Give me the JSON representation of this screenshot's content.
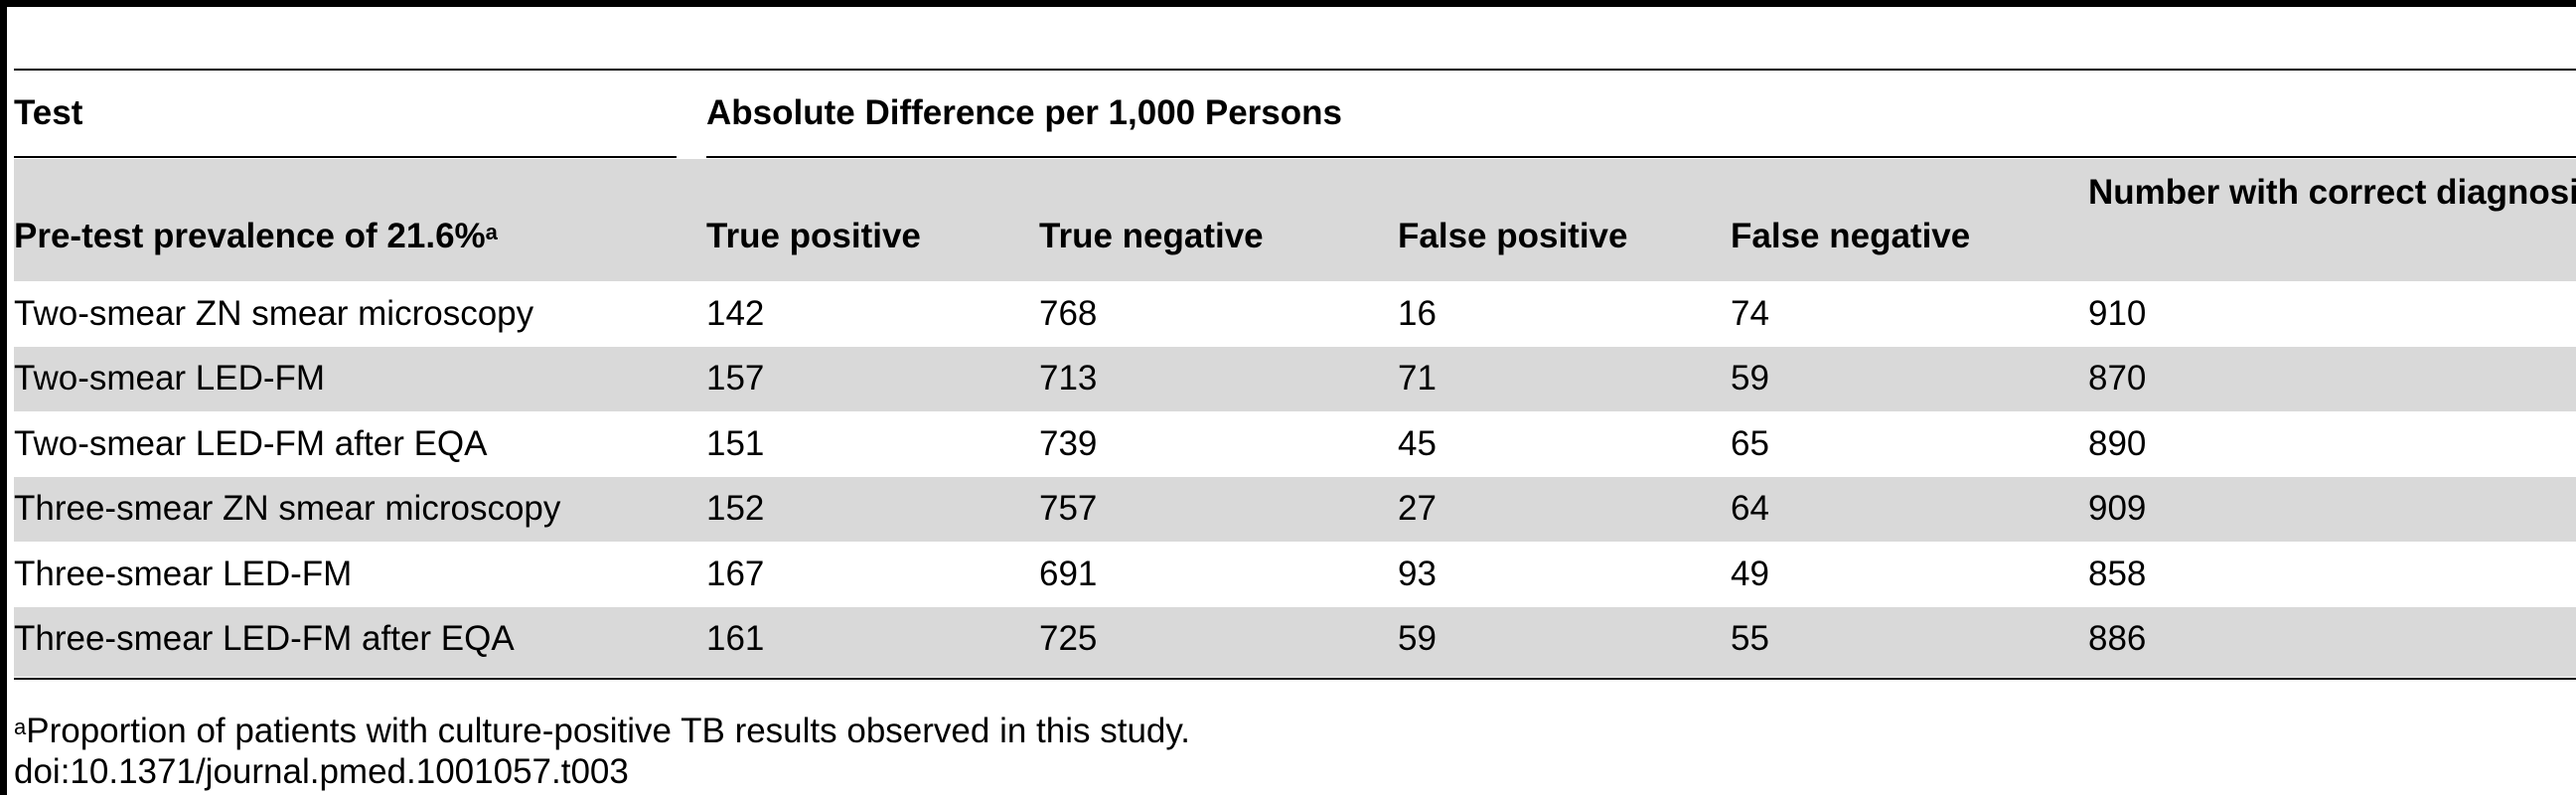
{
  "table": {
    "group_header": {
      "test": "Test",
      "span": "Absolute Difference per 1,000 Persons"
    },
    "columns": {
      "label": "Pre-test prevalence of 21.6%",
      "label_sup": "a",
      "tp": "True positive",
      "tn": "True negative",
      "fp": "False positive",
      "fn": "False negative",
      "correct": "Number with correct diagnosis"
    },
    "rows": [
      {
        "test": "Two-smear ZN smear microscopy",
        "tp": "142",
        "tn": "768",
        "fp": "16",
        "fn": "74",
        "correct": "910"
      },
      {
        "test": "Two-smear LED-FM",
        "tp": "157",
        "tn": "713",
        "fp": "71",
        "fn": "59",
        "correct": "870"
      },
      {
        "test": "Two-smear LED-FM after EQA",
        "tp": "151",
        "tn": "739",
        "fp": "45",
        "fn": "65",
        "correct": "890"
      },
      {
        "test": "Three-smear ZN smear microscopy",
        "tp": "152",
        "tn": "757",
        "fp": "27",
        "fn": "64",
        "correct": "909"
      },
      {
        "test": "Three-smear LED-FM",
        "tp": "167",
        "tn": "691",
        "fp": "93",
        "fn": "49",
        "correct": "858"
      },
      {
        "test": "Three-smear LED-FM after EQA",
        "tp": "161",
        "tn": "725",
        "fp": "59",
        "fn": "55",
        "correct": "886"
      }
    ]
  },
  "footnote": {
    "sup": "a",
    "text": "Proportion of patients with culture-positive TB results observed in this study.",
    "doi": "doi:10.1371/journal.pmed.1001057.t003"
  }
}
